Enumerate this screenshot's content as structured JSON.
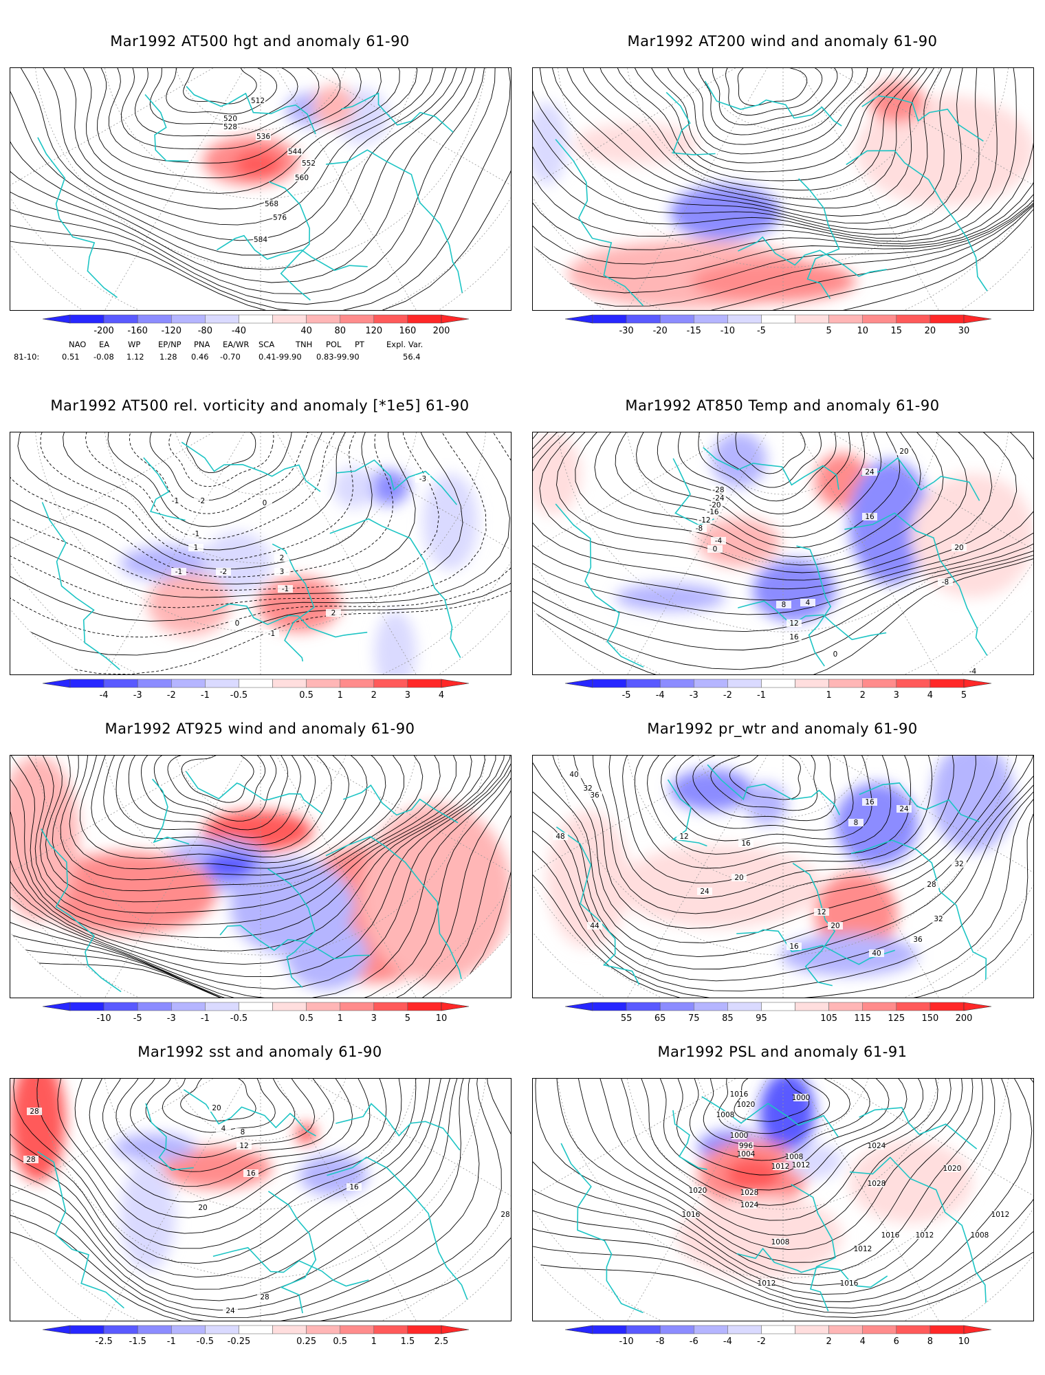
{
  "panels": [
    {
      "id": "p1",
      "title": "Mar1992 AT500 hgt and anomaly 61-90",
      "colorbar": [
        "-200",
        "-160",
        "-120",
        "-80",
        "-40",
        "40",
        "80",
        "120",
        "160",
        "200"
      ],
      "contour_labels": [
        "512",
        "520",
        "528",
        "536",
        "544",
        "552",
        "560",
        "568",
        "576",
        "584"
      ]
    },
    {
      "id": "p2",
      "title": "Mar1992 AT200 wind and anomaly 61-90",
      "colorbar": [
        "-30",
        "-20",
        "-15",
        "-10",
        "-5",
        "5",
        "10",
        "15",
        "20",
        "30"
      ],
      "contour_labels": []
    },
    {
      "id": "p3",
      "title": "Mar1992 AT500 rel. vorticity and anomaly [*1e5] 61-90",
      "colorbar": [
        "-4",
        "-3",
        "-2",
        "-1",
        "-0.5",
        "0.5",
        "1",
        "2",
        "3",
        "4"
      ],
      "contour_labels": [
        "-1",
        "-2",
        "-1",
        "0",
        "1",
        "2",
        "3",
        "-1",
        "-2",
        "-1",
        "0",
        "-3",
        "2",
        "-1"
      ]
    },
    {
      "id": "p4",
      "title": "Mar1992 AT850 Temp and anomaly 61-90",
      "colorbar": [
        "-5",
        "-4",
        "-3",
        "-2",
        "-1",
        "1",
        "2",
        "3",
        "4",
        "5"
      ],
      "contour_labels": [
        "-28",
        "-24",
        "-20",
        "-16",
        "-12",
        "-8",
        "-4",
        "0",
        "4",
        "8",
        "12",
        "16",
        "20",
        "24",
        "16",
        "20",
        "-8",
        "-4",
        "0"
      ]
    },
    {
      "id": "p5",
      "title": "Mar1992 AT925 wind and anomaly 61-90",
      "colorbar": [
        "-10",
        "-5",
        "-3",
        "-1",
        "-0.5",
        "0.5",
        "1",
        "3",
        "5",
        "10"
      ],
      "contour_labels": []
    },
    {
      "id": "p6",
      "title": "Mar1992 pr_wtr and anomaly 61-90",
      "colorbar": [
        "55",
        "65",
        "75",
        "85",
        "95",
        "105",
        "115",
        "125",
        "150",
        "200"
      ],
      "contour_labels": [
        "40",
        "32",
        "36",
        "48",
        "44",
        "12",
        "16",
        "20",
        "24",
        "12",
        "16",
        "20",
        "28",
        "32",
        "36",
        "40",
        "8",
        "16",
        "24",
        "32"
      ]
    },
    {
      "id": "p7",
      "title": "Mar1992 sst and anomaly 61-90",
      "colorbar": [
        "-2.5",
        "-1.5",
        "-1",
        "-0.5",
        "-0.25",
        "0.25",
        "0.5",
        "1",
        "1.5",
        "2.5"
      ],
      "contour_labels": [
        "28",
        "28",
        "20",
        "4",
        "8",
        "12",
        "16",
        "20",
        "24",
        "28",
        "16",
        "28"
      ]
    },
    {
      "id": "p8",
      "title": "Mar1992 PSL and anomaly 61-91",
      "colorbar": [
        "-10",
        "-8",
        "-6",
        "-4",
        "-2",
        "2",
        "4",
        "6",
        "8",
        "10"
      ],
      "contour_labels": [
        "1016",
        "1020",
        "1008",
        "1000",
        "996",
        "1004",
        "1012",
        "1000",
        "1008",
        "1012",
        "1028",
        "1024",
        "1020",
        "1016",
        "1024",
        "1028",
        "1020",
        "1016",
        "1012",
        "1008",
        "1012",
        "1016",
        "1012",
        "1008",
        "1012"
      ]
    }
  ],
  "teleconnection": {
    "headers": [
      "NAO",
      "EA",
      "WP",
      "EP/NP",
      "PNA",
      "EA/WR",
      "SCA",
      "TNH",
      "POL",
      "PT",
      "Expl. Var."
    ],
    "row_label": "81-10:",
    "values": [
      "0.51",
      "-0.08",
      "1.12",
      "1.28",
      "0.46",
      "-0.70",
      "0.41-99.90",
      "0.83-99.90",
      "56.4"
    ]
  },
  "colors": {
    "blue_scale": [
      "#2727ff",
      "#5a5aff",
      "#8c8cff",
      "#b5b5ff",
      "#dadaff"
    ],
    "red_scale": [
      "#ffdede",
      "#ffb6b6",
      "#ff8c8c",
      "#ff5a5a",
      "#ff2828"
    ],
    "coast": "#1cc4c4",
    "grid": "#999999"
  },
  "icons": {
    "arrow_left": "triangle-left-icon",
    "arrow_right": "triangle-right-icon"
  }
}
